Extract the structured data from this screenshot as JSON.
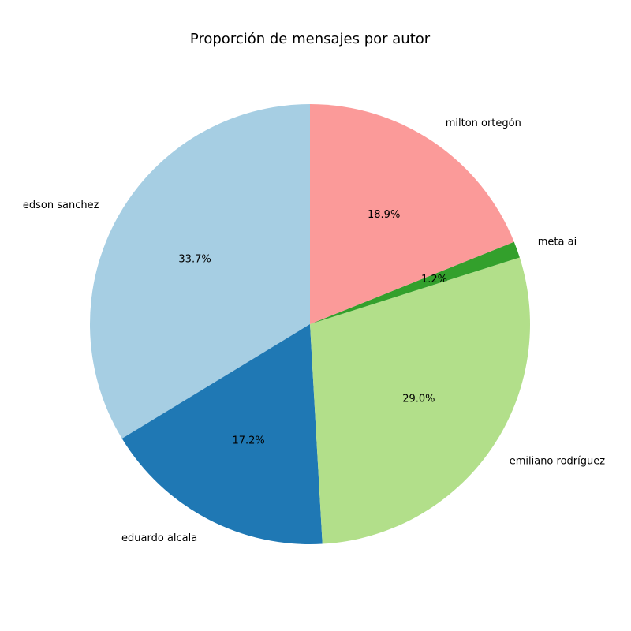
{
  "chart_data": {
    "type": "pie",
    "title": "Proporción de mensajes por autor",
    "start_angle_deg": 90,
    "direction": "counterclockwise",
    "slices": [
      {
        "label": "edson sanchez",
        "value": 33.7,
        "pct_label": "33.7%",
        "color": "#a6cee3"
      },
      {
        "label": "eduardo alcala",
        "value": 17.2,
        "pct_label": "17.2%",
        "color": "#1f78b4"
      },
      {
        "label": "emiliano rodríguez",
        "value": 29.0,
        "pct_label": "29.0%",
        "color": "#b2df8a"
      },
      {
        "label": "meta ai",
        "value": 1.2,
        "pct_label": "1.2%",
        "color": "#33a02c"
      },
      {
        "label": "milton ortegón",
        "value": 18.9,
        "pct_label": "18.9%",
        "color": "#fb9a99"
      }
    ]
  }
}
